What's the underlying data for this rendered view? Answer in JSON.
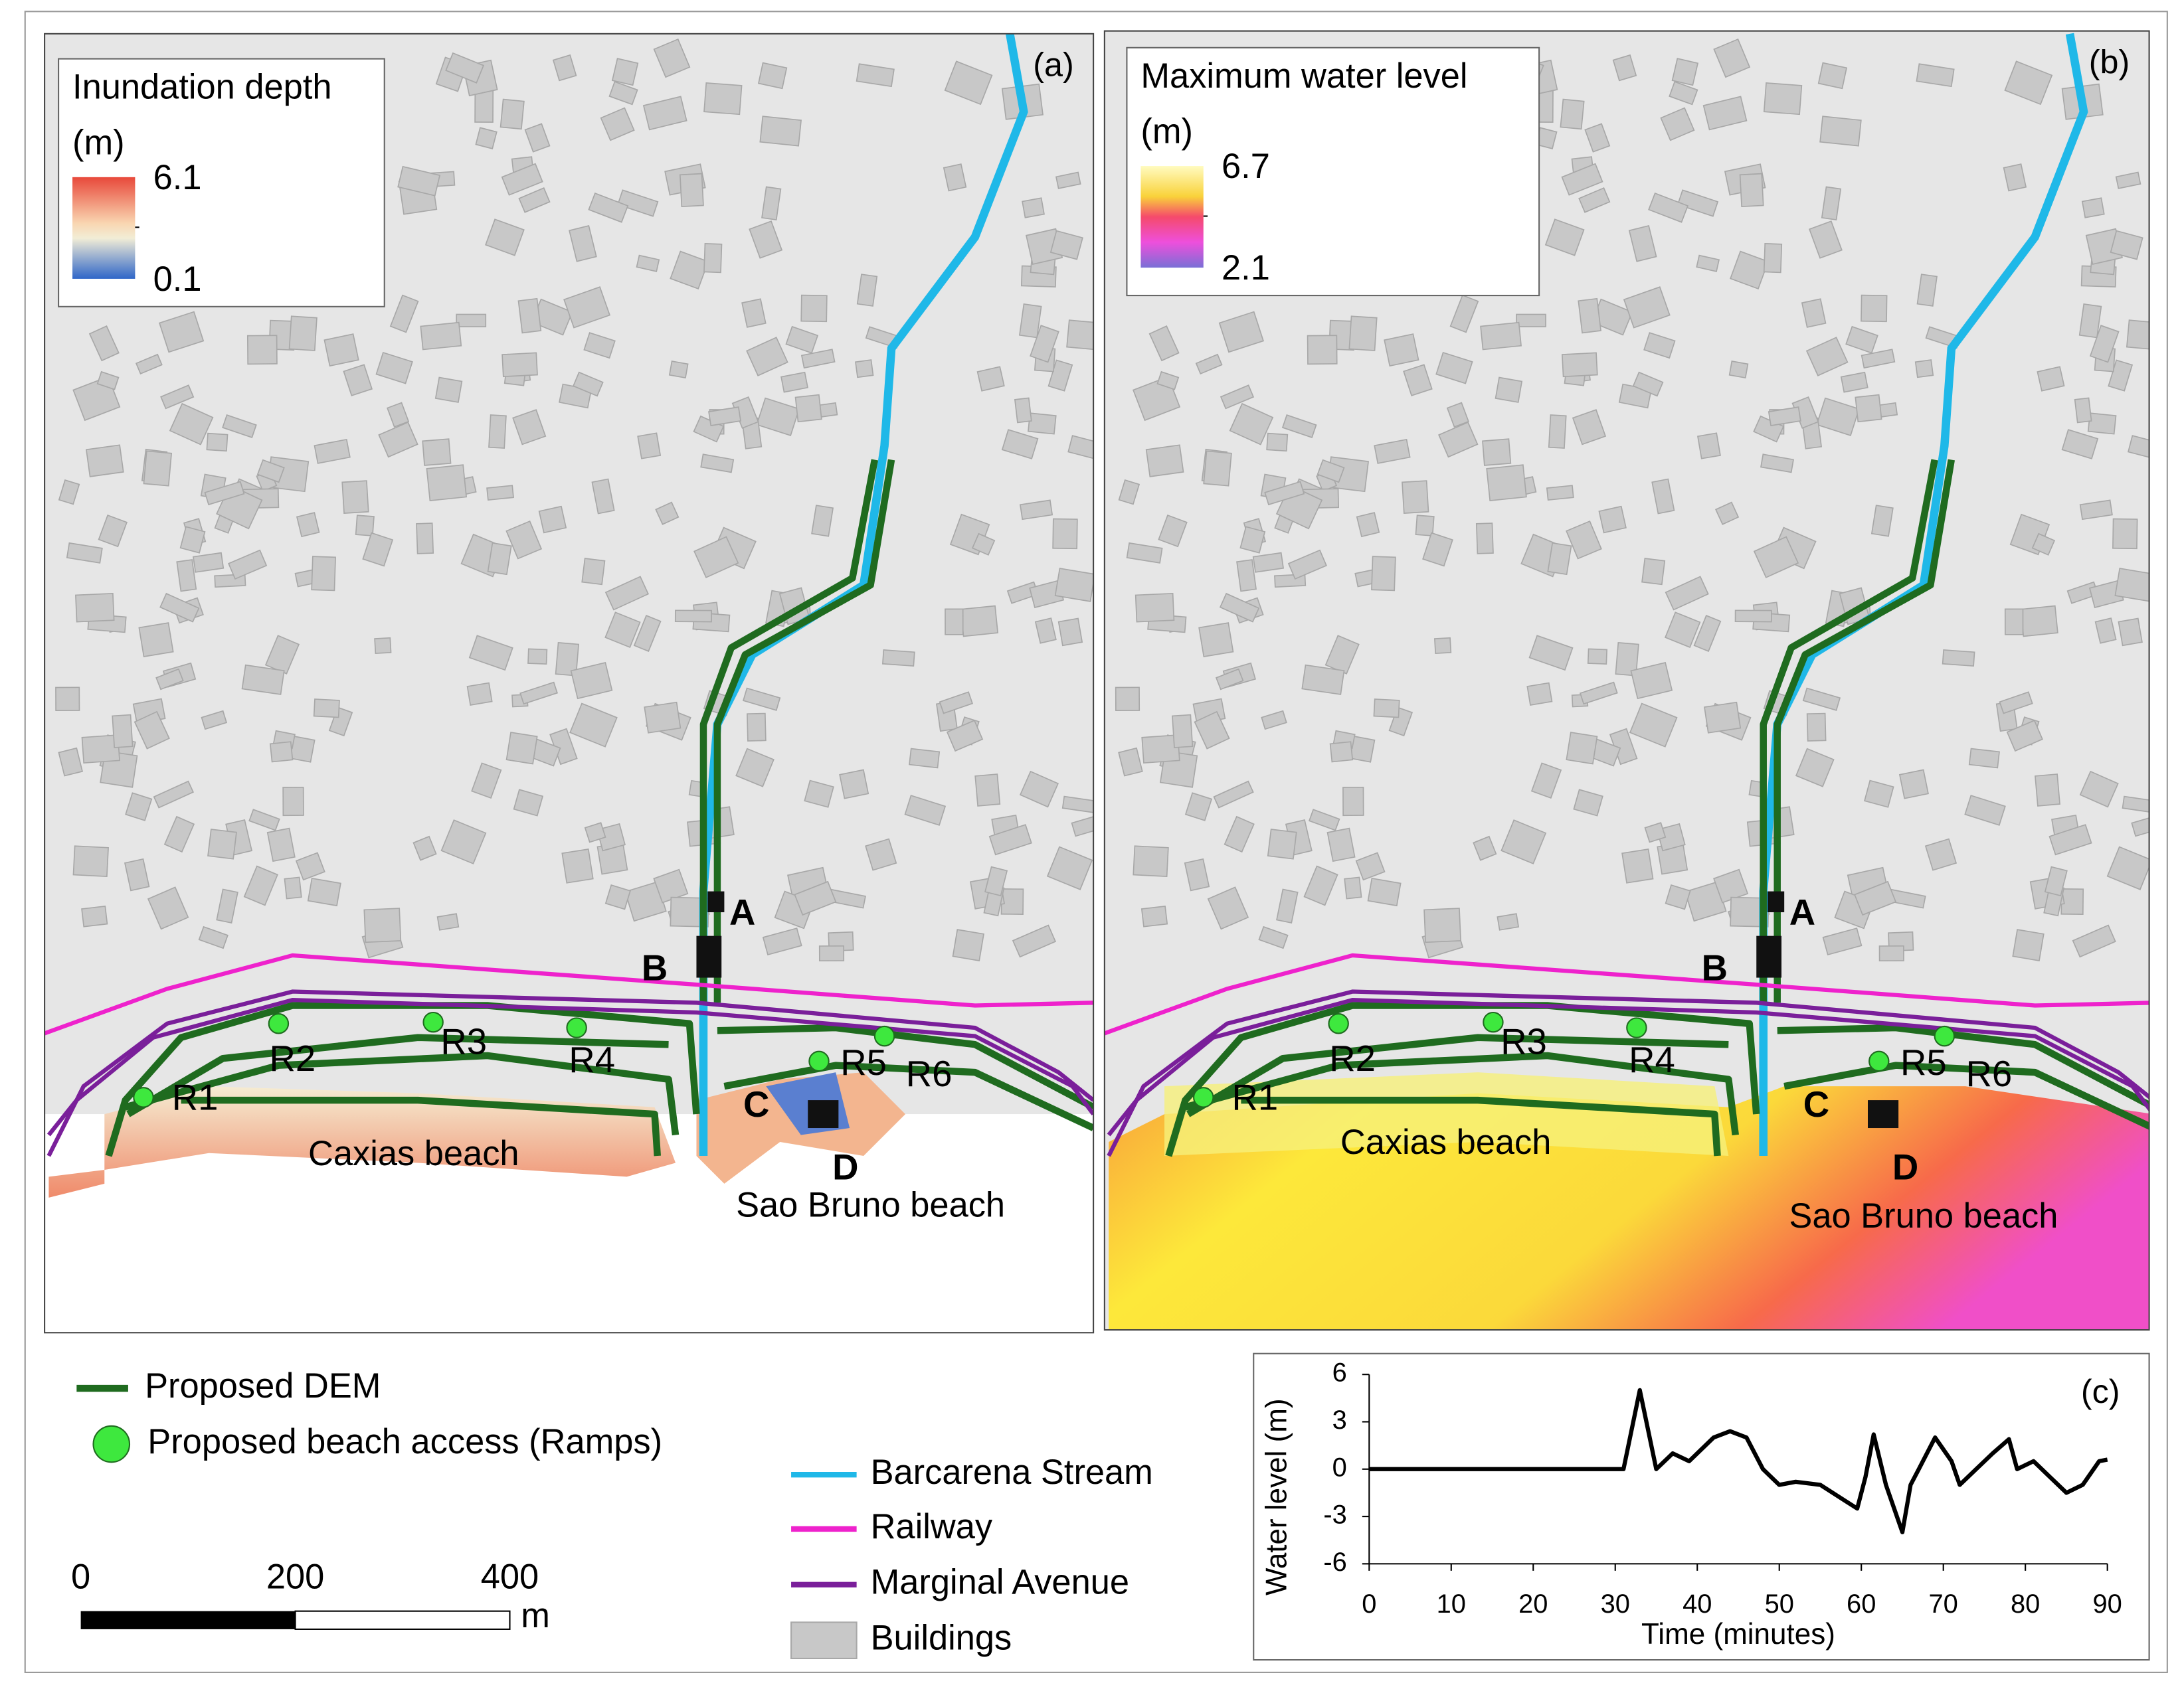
{
  "panels": [
    {
      "tag": "(a)",
      "legend_title": "Inundation depth",
      "legend_unit": "(m)",
      "legend_max": 6.1,
      "legend_min": 0.1,
      "sites": [
        "A",
        "B",
        "C",
        "D"
      ],
      "ramps": [
        "R1",
        "R2",
        "R3",
        "R4",
        "R5",
        "R6"
      ],
      "beaches": [
        "Caxias beach",
        "Sao Bruno beach"
      ]
    },
    {
      "tag": "(b)",
      "legend_title": "Maximum water level",
      "legend_unit": "(m)",
      "legend_max": 6.7,
      "legend_min": 2.1,
      "sites": [
        "A",
        "B",
        "C",
        "D"
      ],
      "ramps": [
        "R1",
        "R2",
        "R3",
        "R4",
        "R5",
        "R6"
      ],
      "beaches": [
        "Caxias beach",
        "Sao Bruno beach"
      ]
    }
  ],
  "legend": [
    "Proposed DEM",
    "Proposed beach access (Ramps)",
    "Barcarena Stream",
    "Railway",
    "Marginal Avenue",
    "Buildings"
  ],
  "scale_bar": {
    "ticks": [
      0,
      200,
      400
    ],
    "unit": "m"
  },
  "chart_data": {
    "type": "line",
    "panel_tag": "(c)",
    "x_label": "Time (minutes)",
    "y_label": "Water level (m)",
    "x": [
      0,
      10,
      20,
      31,
      33,
      35,
      37,
      39,
      42,
      44,
      46,
      48,
      50,
      52,
      55,
      58,
      59.5,
      60.5,
      61.5,
      63,
      65,
      66,
      67,
      69,
      71,
      72,
      74,
      76,
      78,
      79,
      81,
      83,
      85,
      87,
      89,
      90
    ],
    "values": [
      0,
      0,
      0,
      0,
      5,
      0,
      1,
      0.5,
      2,
      2.4,
      2,
      0,
      -1,
      -0.8,
      -1,
      -2,
      -2.5,
      -0.5,
      2.2,
      -1,
      -4,
      -1,
      0,
      2,
      0.5,
      -1,
      0,
      1,
      1.9,
      0,
      0.5,
      -0.5,
      -1.5,
      -1,
      0.5,
      0.6
    ],
    "color": "#000000",
    "xlim": [
      0,
      90
    ],
    "xticks": [
      0,
      10,
      20,
      30,
      40,
      50,
      60,
      70,
      80,
      90
    ],
    "ylim": [
      -6,
      6
    ],
    "yticks": [
      -6,
      -3,
      0,
      3,
      6
    ]
  }
}
